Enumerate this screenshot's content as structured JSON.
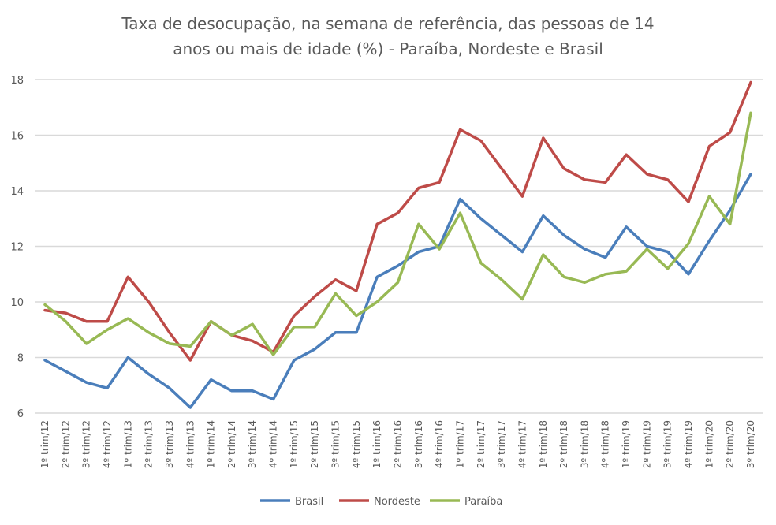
{
  "chart_data": {
    "type": "line",
    "title": [
      "Taxa de desocupação, na semana de referência, das pessoas de 14",
      "anos ou mais de idade (%) - Paraíba, Nordeste e Brasil"
    ],
    "xlabel": "",
    "ylabel": "",
    "ylim": [
      6,
      18
    ],
    "yticks": [
      6,
      8,
      10,
      12,
      14,
      16,
      18
    ],
    "grid": true,
    "legend_position": "bottom",
    "categories": [
      "1º trim/12",
      "2º trim/12",
      "3º trim/12",
      "4º trim/12",
      "1º trim/13",
      "2º trim/13",
      "3º trim/13",
      "4º trim/13",
      "1º trim/14",
      "2º trim/14",
      "3º trim/14",
      "4º trim/14",
      "1º trim/15",
      "2º trim/15",
      "3º trim/15",
      "4º trim/15",
      "1º trim/16",
      "2º trim/16",
      "3º trim/16",
      "4º trim/16",
      "1º trim/17",
      "2º trim/17",
      "3º trim/17",
      "4º trim/17",
      "1º trim/18",
      "2º trim/18",
      "3º trim/18",
      "4º trim/18",
      "1º trim/19",
      "2º trim/19",
      "3º trim/19",
      "4º trim/19",
      "1º trim/20",
      "2º trim/20",
      "3º trim/20"
    ],
    "series": [
      {
        "name": "Brasil",
        "color": "#4a7ebb",
        "values": [
          7.9,
          7.5,
          7.1,
          6.9,
          8.0,
          7.4,
          6.9,
          6.2,
          7.2,
          6.8,
          6.8,
          6.5,
          7.9,
          8.3,
          8.9,
          8.9,
          10.9,
          11.3,
          11.8,
          12.0,
          13.7,
          13.0,
          12.4,
          11.8,
          13.1,
          12.4,
          11.9,
          11.6,
          12.7,
          12.0,
          11.8,
          11.0,
          12.2,
          13.3,
          14.6
        ]
      },
      {
        "name": "Nordeste",
        "color": "#be4b48",
        "values": [
          9.7,
          9.6,
          9.3,
          9.3,
          10.9,
          10.0,
          8.9,
          7.9,
          9.3,
          8.8,
          8.6,
          8.2,
          9.5,
          10.2,
          10.8,
          10.4,
          12.8,
          13.2,
          14.1,
          14.3,
          16.2,
          15.8,
          14.8,
          13.8,
          15.9,
          14.8,
          14.4,
          14.3,
          15.3,
          14.6,
          14.4,
          13.6,
          15.6,
          16.1,
          17.9
        ]
      },
      {
        "name": "Paraíba",
        "color": "#98b954",
        "values": [
          9.9,
          9.3,
          8.5,
          9.0,
          9.4,
          8.9,
          8.5,
          8.4,
          9.3,
          8.8,
          9.2,
          8.1,
          9.1,
          9.1,
          10.3,
          9.5,
          10.0,
          10.7,
          12.8,
          11.9,
          13.2,
          11.4,
          10.8,
          10.1,
          11.7,
          10.9,
          10.7,
          11.0,
          11.1,
          11.9,
          11.2,
          12.1,
          13.8,
          12.8,
          16.8
        ]
      }
    ]
  }
}
